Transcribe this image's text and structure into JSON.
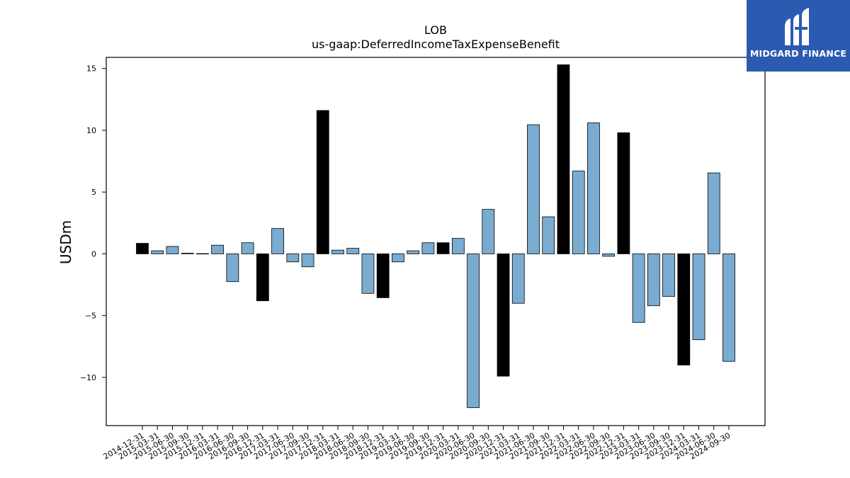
{
  "chart_data": {
    "type": "bar",
    "title": "LOB",
    "subtitle": "us-gaap:DeferredIncomeTaxExpenseBenefit",
    "ylabel": "USDm",
    "xlabel": "",
    "ylim": [
      -13.9,
      15.9
    ],
    "yticks": [
      -10,
      -5,
      0,
      5,
      10,
      15
    ],
    "grid": false,
    "colors": {
      "quarter": "#7aabd0",
      "year_end": "#000000",
      "edge": "#000000"
    },
    "categories": [
      "2014-12-31",
      "2015-03-31",
      "2015-06-30",
      "2015-09-30",
      "2015-12-31",
      "2016-03-31",
      "2016-06-30",
      "2016-09-30",
      "2016-12-31",
      "2017-03-31",
      "2017-06-30",
      "2017-09-30",
      "2017-12-31",
      "2018-03-31",
      "2018-06-30",
      "2018-09-30",
      "2018-12-31",
      "2019-03-31",
      "2019-06-30",
      "2019-09-30",
      "2019-12-31",
      "2020-03-31",
      "2020-06-30",
      "2020-09-30",
      "2020-12-31",
      "2021-03-31",
      "2021-06-30",
      "2021-09-30",
      "2021-12-31",
      "2022-03-31",
      "2022-06-30",
      "2022-09-30",
      "2022-12-31",
      "2023-03-31",
      "2023-06-30",
      "2023-09-30",
      "2023-12-31",
      "2024-03-31",
      "2024-06-30",
      "2024-09-30"
    ],
    "values": [
      0.85,
      0.25,
      0.6,
      0.05,
      0.02,
      0.7,
      -2.25,
      0.9,
      -3.8,
      2.05,
      -0.65,
      -1.05,
      11.6,
      0.3,
      0.45,
      -3.2,
      -3.55,
      -0.65,
      0.25,
      0.9,
      0.9,
      1.25,
      -12.45,
      3.6,
      -9.9,
      -4.0,
      10.45,
      3.0,
      15.3,
      6.7,
      10.6,
      -0.2,
      9.8,
      -5.55,
      -4.2,
      -3.45,
      -9.0,
      -6.95,
      6.55,
      -8.7
    ],
    "year_end": [
      true,
      false,
      false,
      false,
      true,
      false,
      false,
      false,
      true,
      false,
      false,
      false,
      true,
      false,
      false,
      false,
      true,
      false,
      false,
      false,
      true,
      false,
      false,
      false,
      true,
      false,
      false,
      false,
      true,
      false,
      false,
      false,
      true,
      false,
      false,
      false,
      true,
      false,
      false,
      false
    ]
  },
  "logo": {
    "text": "MIDGARD FINANCE",
    "icon": "midgard-logo-icon",
    "color": "#2b5bb0"
  }
}
